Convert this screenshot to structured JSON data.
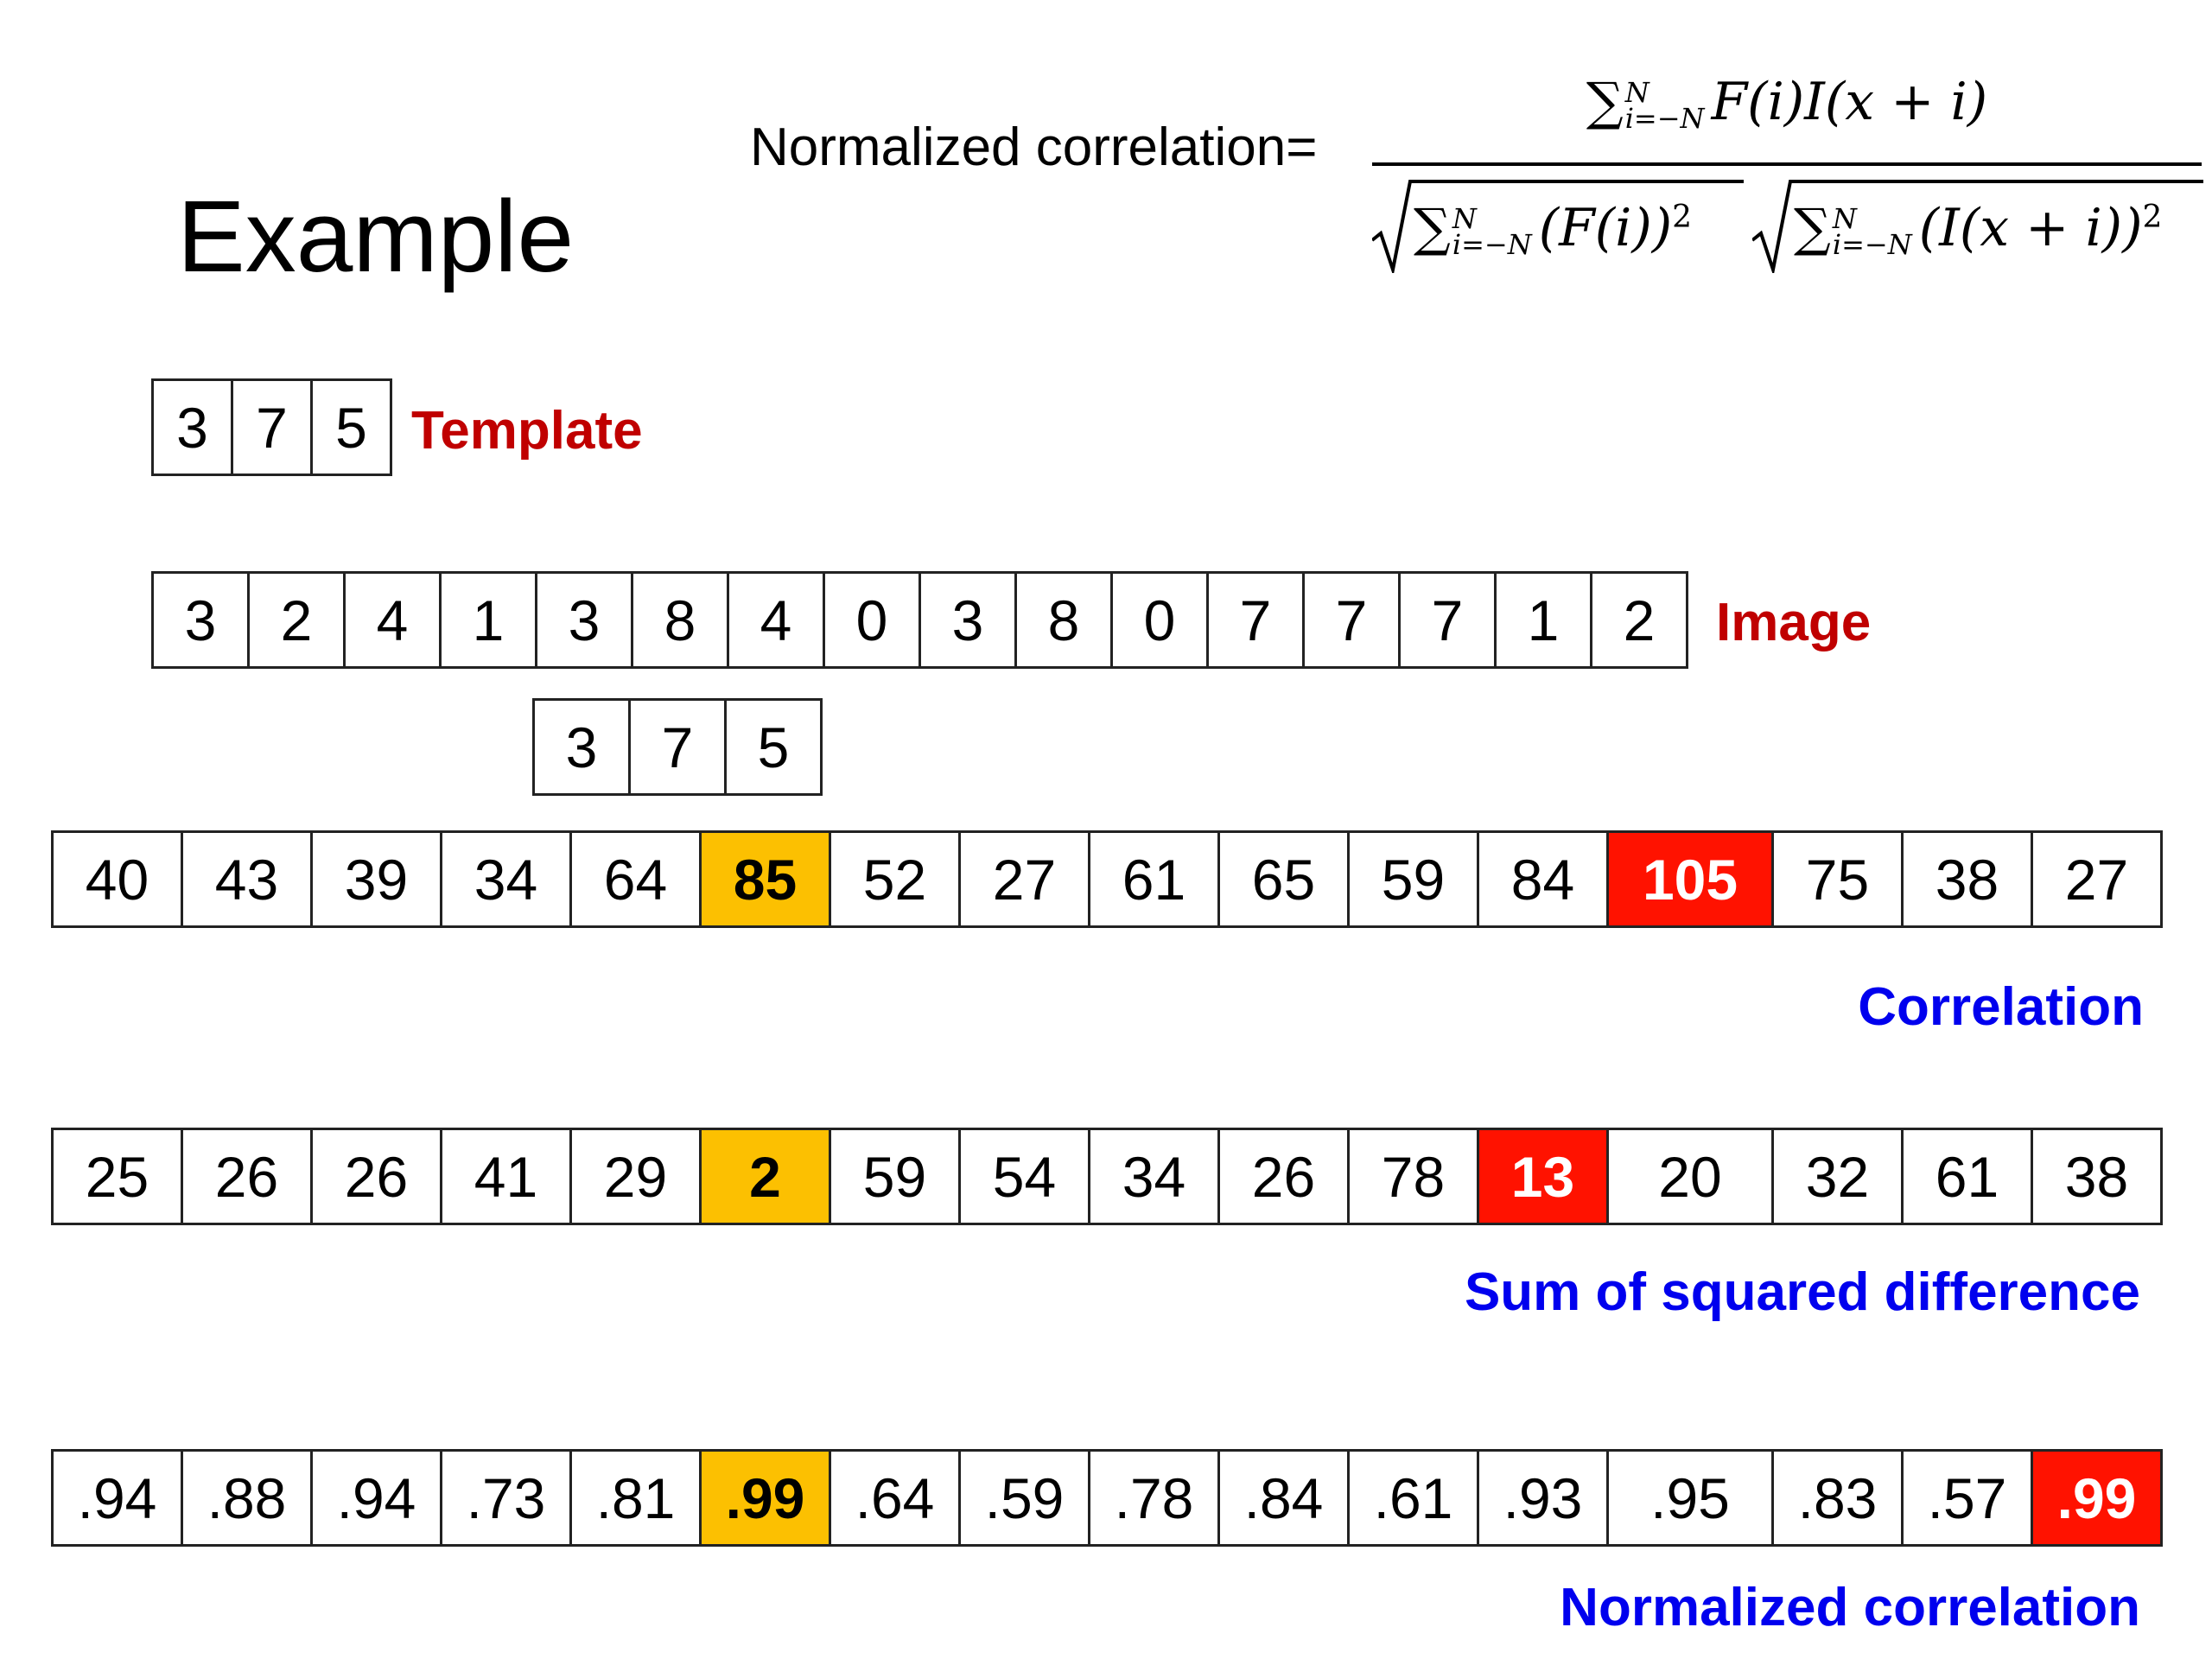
{
  "title": "Example",
  "formula": {
    "label": "Normalized correlation=",
    "sum_symbol": "∑",
    "upper_limit": "N",
    "lower_limit": "i=−N",
    "numerator_term": "F(i)I(x + i)",
    "denominator_term_1": "(F(i))",
    "denominator_term_2": "(I(x + i))",
    "exponent": "2"
  },
  "template": {
    "label": "Template",
    "values": [
      "3",
      "7",
      "5"
    ]
  },
  "image": {
    "label": "Image",
    "values": [
      "3",
      "2",
      "4",
      "1",
      "3",
      "8",
      "4",
      "0",
      "3",
      "8",
      "0",
      "7",
      "7",
      "7",
      "1",
      "2"
    ]
  },
  "sliding_template": {
    "values": [
      "3",
      "7",
      "5"
    ],
    "aligned_image_index": 4
  },
  "correlation": {
    "label": "Correlation",
    "values": [
      "40",
      "43",
      "39",
      "34",
      "64",
      "85",
      "52",
      "27",
      "61",
      "65",
      "59",
      "84",
      "105",
      "75",
      "38",
      "27"
    ],
    "highlight_orange_index": 5,
    "highlight_red_index": 12
  },
  "ssd": {
    "label": "Sum of squared difference",
    "values": [
      "25",
      "26",
      "26",
      "41",
      "29",
      "2",
      "59",
      "54",
      "34",
      "26",
      "78",
      "13",
      "20",
      "32",
      "61",
      "38"
    ],
    "highlight_orange_index": 5,
    "highlight_red_index": 11
  },
  "normalized_correlation": {
    "label": "Normalized correlation",
    "values": [
      ".94",
      ".88",
      ".94",
      ".73",
      ".81",
      ".99",
      ".64",
      ".59",
      ".78",
      ".84",
      ".61",
      ".93",
      ".95",
      ".83",
      ".57",
      ".99"
    ],
    "highlight_orange_index": 5,
    "highlight_red_index": 15
  },
  "colors": {
    "highlight_orange": "#fcc001",
    "highlight_red": "#ff1200",
    "label_red": "#c00000",
    "label_blue": "#0000ee"
  }
}
